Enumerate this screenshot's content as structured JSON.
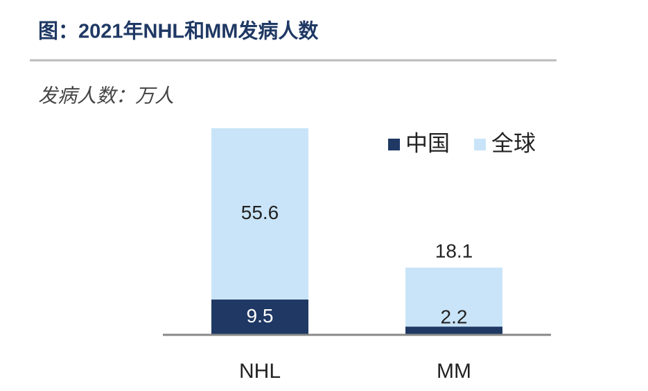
{
  "chart_data": {
    "type": "bar",
    "bar_mode": "overlay",
    "title": "图：2021年NHL和MM发病人数",
    "subtitle": "发病人数：万人",
    "categories": [
      "NHL",
      "MM"
    ],
    "series": [
      {
        "name": "全球",
        "color": "#c9e4f8",
        "values": [
          55.6,
          18.1
        ]
      },
      {
        "name": "中国",
        "color": "#1f3864",
        "values": [
          9.5,
          2.2
        ]
      }
    ]
  }
}
